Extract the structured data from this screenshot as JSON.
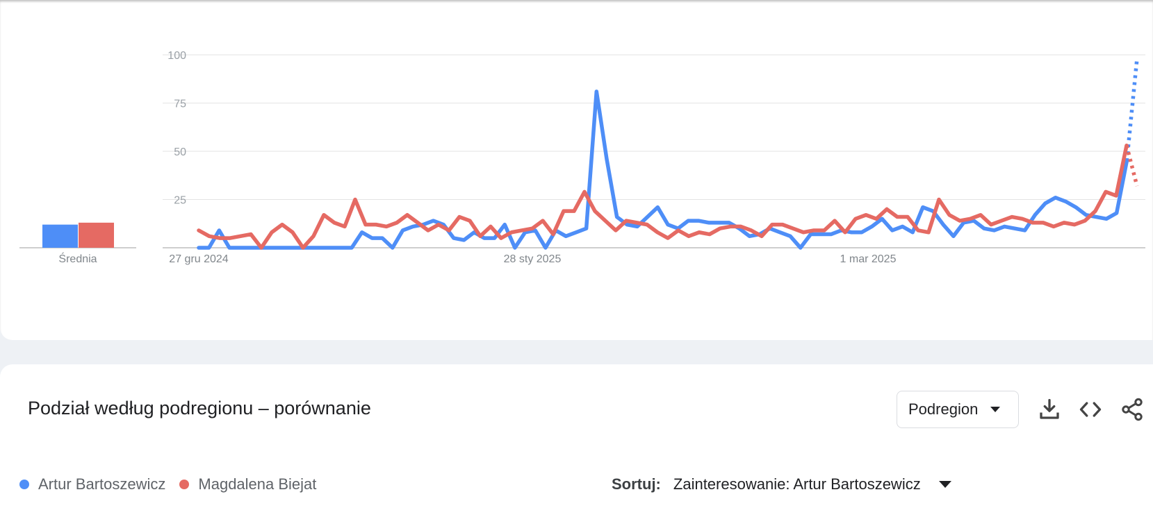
{
  "chart_data": {
    "type": "line",
    "x_labels": [
      "27 gru 2024",
      "28 sty 2025",
      "1 mar 2025"
    ],
    "ylim": [
      0,
      100
    ],
    "yticks": [
      25,
      50,
      75,
      100
    ],
    "grid": true,
    "series": [
      {
        "name": "Artur Bartoszewicz",
        "color": "#4e8ef7",
        "values": [
          0,
          0,
          9,
          0,
          0,
          0,
          0,
          0,
          0,
          0,
          0,
          0,
          0,
          0,
          0,
          0,
          8,
          5,
          5,
          0,
          9,
          11,
          12,
          14,
          12,
          5,
          4,
          8,
          5,
          5,
          12,
          0,
          8,
          9,
          0,
          9,
          6,
          8,
          10,
          81,
          46,
          16,
          12,
          11,
          16,
          21,
          12,
          10,
          14,
          14,
          13,
          13,
          13,
          10,
          6,
          7,
          10,
          8,
          6,
          0,
          7,
          7,
          7,
          9,
          8,
          8,
          11,
          15,
          9,
          11,
          8,
          21,
          19,
          12,
          6,
          13,
          14,
          10,
          9,
          11,
          10,
          9,
          17,
          23,
          26,
          24,
          21,
          17,
          16,
          15,
          18,
          45,
          98
        ],
        "dotted_from_index": 91
      },
      {
        "name": "Magdalena Biejat",
        "color": "#e56a63",
        "values": [
          9,
          6,
          5,
          5,
          6,
          7,
          0,
          8,
          12,
          8,
          0,
          6,
          17,
          13,
          11,
          25,
          12,
          12,
          11,
          13,
          17,
          13,
          9,
          12,
          9,
          16,
          14,
          6,
          11,
          5,
          8,
          9,
          10,
          14,
          7,
          19,
          19,
          29,
          19,
          14,
          9,
          14,
          13,
          12,
          8,
          5,
          9,
          6,
          8,
          7,
          10,
          11,
          11,
          9,
          6,
          12,
          12,
          10,
          8,
          9,
          9,
          14,
          8,
          15,
          17,
          15,
          20,
          16,
          16,
          9,
          8,
          25,
          17,
          14,
          15,
          17,
          12,
          14,
          16,
          15,
          13,
          13,
          11,
          13,
          12,
          14,
          19,
          29,
          27,
          53,
          32
        ],
        "dotted_from_index": 89
      }
    ],
    "average": {
      "label": "Średnia",
      "values": [
        12,
        13
      ]
    }
  },
  "region": {
    "title": "Podział według podregionu – porównanie",
    "select_value": "Podregion",
    "sort_label": "Sortuj:",
    "sort_value": "Zainteresowanie: Artur Bartoszewicz"
  },
  "legend": [
    {
      "name": "Artur Bartoszewicz",
      "color": "#4e8ef7"
    },
    {
      "name": "Magdalena Biejat",
      "color": "#e56a63"
    }
  ],
  "icons": [
    "download-icon",
    "embed-code-icon",
    "share-icon"
  ]
}
